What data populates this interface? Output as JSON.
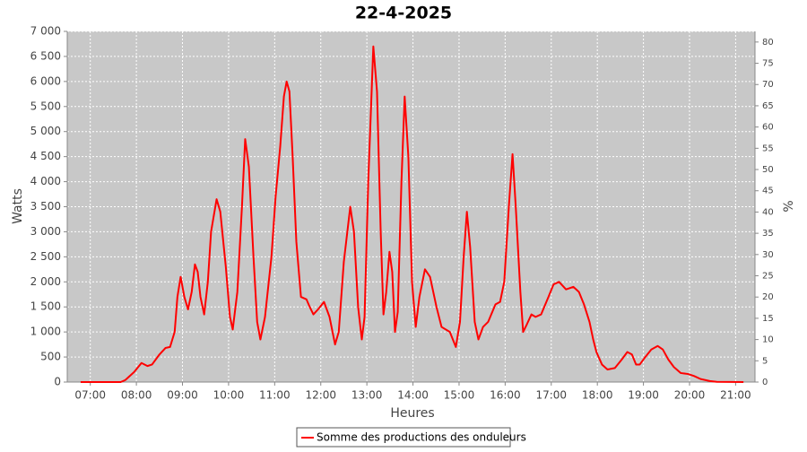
{
  "chart_data": {
    "type": "line",
    "title": "22-4-2025",
    "x_label": "Heures",
    "y_label": "Watts",
    "y2_label": "%",
    "grid": true,
    "legend": "bottom",
    "xlim": [
      6.5,
      21.42
    ],
    "xticks": [
      {
        "value": 7,
        "label": "07:00"
      },
      {
        "value": 8,
        "label": "08:00"
      },
      {
        "value": 9,
        "label": "09:00"
      },
      {
        "value": 10,
        "label": "10:00"
      },
      {
        "value": 11,
        "label": "11:00"
      },
      {
        "value": 12,
        "label": "12:00"
      },
      {
        "value": 13,
        "label": "13:00"
      },
      {
        "value": 14,
        "label": "14:00"
      },
      {
        "value": 15,
        "label": "15:00"
      },
      {
        "value": 16,
        "label": "16:00"
      },
      {
        "value": 17,
        "label": "17:00"
      },
      {
        "value": 18,
        "label": "18:00"
      },
      {
        "value": 19,
        "label": "19:00"
      },
      {
        "value": 20,
        "label": "20:00"
      },
      {
        "value": 21,
        "label": "21:00"
      }
    ],
    "ylim": [
      0,
      7000
    ],
    "yticks": [
      0,
      500,
      {
        "value": 1000,
        "label": "1 000"
      },
      {
        "value": 1500,
        "label": "1 500"
      },
      {
        "value": 2000,
        "label": "2 000"
      },
      {
        "value": 2500,
        "label": "2 500"
      },
      {
        "value": 3000,
        "label": "3 000"
      },
      {
        "value": 3500,
        "label": "3 500"
      },
      {
        "value": 4000,
        "label": "4 000"
      },
      {
        "value": 4500,
        "label": "4 500"
      },
      {
        "value": 5000,
        "label": "5 000"
      },
      {
        "value": 5500,
        "label": "5 500"
      },
      {
        "value": 6000,
        "label": "6 000"
      },
      {
        "value": 6500,
        "label": "6 500"
      },
      {
        "value": 7000,
        "label": "7 000"
      }
    ],
    "y2lim": [
      0,
      82.5
    ],
    "y2ticks": [
      0,
      5,
      10,
      15,
      20,
      25,
      30,
      35,
      40,
      45,
      50,
      55,
      60,
      65,
      70,
      75,
      80
    ],
    "x": [
      6.79,
      7.66,
      7.76,
      7.95,
      8.11,
      8.24,
      8.34,
      8.5,
      8.63,
      8.73,
      8.83,
      8.89,
      8.96,
      9.04,
      9.12,
      9.2,
      9.27,
      9.33,
      9.39,
      9.47,
      9.55,
      9.62,
      9.74,
      9.82,
      9.94,
      10.03,
      10.09,
      10.19,
      10.29,
      10.36,
      10.44,
      10.54,
      10.62,
      10.69,
      10.79,
      10.93,
      11.02,
      11.12,
      11.2,
      11.26,
      11.32,
      11.39,
      11.47,
      11.57,
      11.69,
      11.76,
      11.84,
      11.94,
      12.07,
      12.19,
      12.31,
      12.39,
      12.5,
      12.64,
      12.72,
      12.81,
      12.89,
      12.95,
      13.03,
      13.14,
      13.22,
      13.3,
      13.36,
      13.42,
      13.49,
      13.55,
      13.61,
      13.67,
      13.75,
      13.82,
      13.9,
      13.98,
      14.06,
      14.14,
      14.26,
      14.37,
      14.51,
      14.62,
      14.8,
      14.93,
      15.02,
      15.1,
      15.17,
      15.24,
      15.34,
      15.42,
      15.52,
      15.63,
      15.79,
      15.89,
      15.98,
      16.08,
      16.16,
      16.23,
      16.33,
      16.39,
      16.47,
      16.57,
      16.66,
      16.78,
      16.94,
      17.05,
      17.17,
      17.32,
      17.48,
      17.6,
      17.71,
      17.83,
      17.91,
      17.98,
      18.1,
      18.22,
      18.38,
      18.53,
      18.65,
      18.75,
      18.84,
      18.92,
      19.04,
      19.17,
      19.31,
      19.42,
      19.54,
      19.66,
      19.81,
      19.97,
      20.1,
      20.24,
      20.44,
      20.59,
      21.17
    ],
    "series": [
      {
        "name": "Somme des productions des onduleurs",
        "color": "#ff0000",
        "values": [
          0,
          0,
          40,
          200,
          380,
          320,
          350,
          550,
          680,
          700,
          1000,
          1700,
          2100,
          1700,
          1450,
          1800,
          2350,
          2200,
          1700,
          1350,
          2000,
          3000,
          3650,
          3400,
          2300,
          1300,
          1050,
          1800,
          3500,
          4850,
          4300,
          2500,
          1200,
          850,
          1300,
          2500,
          3700,
          4700,
          5700,
          6000,
          5800,
          4500,
          2800,
          1700,
          1650,
          1500,
          1350,
          1450,
          1600,
          1300,
          750,
          1000,
          2400,
          3500,
          3000,
          1500,
          850,
          1300,
          4000,
          6700,
          5800,
          3000,
          1350,
          1800,
          2600,
          2200,
          1000,
          1400,
          4000,
          5700,
          4500,
          2000,
          1100,
          1700,
          2250,
          2100,
          1500,
          1100,
          1000,
          700,
          1200,
          2500,
          3400,
          2700,
          1200,
          850,
          1100,
          1200,
          1550,
          1600,
          2000,
          3500,
          4550,
          3500,
          1800,
          1000,
          1150,
          1350,
          1300,
          1350,
          1700,
          1950,
          2000,
          1850,
          1900,
          1800,
          1550,
          1200,
          850,
          600,
          350,
          250,
          280,
          450,
          600,
          550,
          350,
          350,
          500,
          650,
          720,
          650,
          450,
          300,
          180,
          160,
          120,
          60,
          20,
          5,
          0
        ]
      }
    ]
  }
}
